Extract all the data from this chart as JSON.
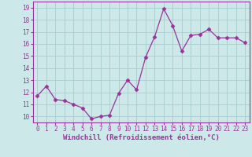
{
  "x": [
    0,
    1,
    2,
    3,
    4,
    5,
    6,
    7,
    8,
    9,
    10,
    11,
    12,
    13,
    14,
    15,
    16,
    17,
    18,
    19,
    20,
    21,
    22,
    23
  ],
  "y": [
    11.7,
    12.5,
    11.4,
    11.3,
    11.0,
    10.7,
    9.8,
    10.0,
    10.1,
    11.9,
    13.0,
    12.2,
    14.9,
    16.6,
    18.9,
    17.5,
    15.4,
    16.7,
    16.8,
    17.2,
    16.5,
    16.5,
    16.5,
    16.1
  ],
  "line_color": "#993399",
  "marker": "D",
  "marker_size": 2.5,
  "bg_color": "#cce8e8",
  "grid_color": "#aacccc",
  "xlabel": "Windchill (Refroidissement éolien,°C)",
  "xlim": [
    -0.5,
    23.5
  ],
  "ylim": [
    9.5,
    19.5
  ],
  "yticks": [
    10,
    11,
    12,
    13,
    14,
    15,
    16,
    17,
    18,
    19
  ],
  "xticks": [
    0,
    1,
    2,
    3,
    4,
    5,
    6,
    7,
    8,
    9,
    10,
    11,
    12,
    13,
    14,
    15,
    16,
    17,
    18,
    19,
    20,
    21,
    22,
    23
  ],
  "tick_label_size": 5.5,
  "xlabel_size": 6.5,
  "label_color": "#993399"
}
